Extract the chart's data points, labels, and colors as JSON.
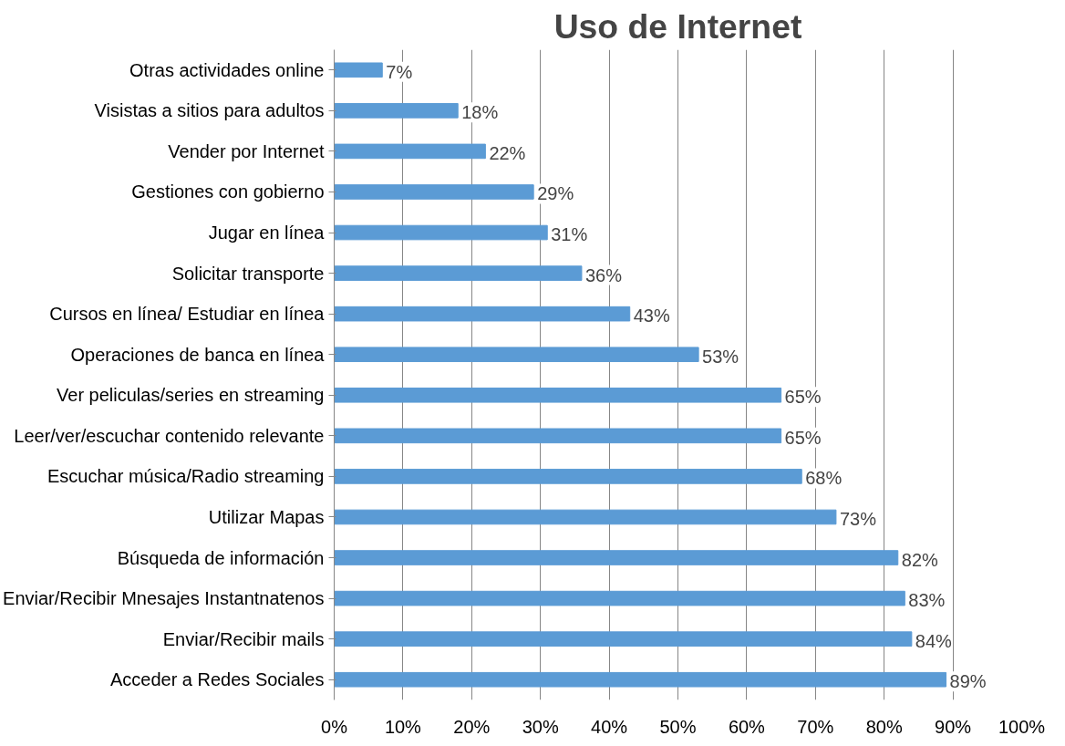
{
  "chart_data": {
    "type": "bar",
    "orientation": "horizontal",
    "title": "Uso de Internet",
    "categories": [
      "Otras actividades online",
      "Visistas a sitios para adultos",
      "Vender por Internet",
      "Gestiones con gobierno",
      "Jugar en línea",
      "Solicitar transporte",
      "Cursos en línea/ Estudiar en línea",
      "Operaciones de banca en línea",
      "Ver peliculas/series en streaming",
      "Leer/ver/escuchar contenido relevante",
      "Escuchar música/Radio streaming",
      "Utilizar Mapas",
      "Búsqueda de información",
      "Enviar/Recibir Mnesajes Instantnatenos",
      "Enviar/Recibir mails",
      "Acceder a Redes Sociales"
    ],
    "values": [
      7,
      18,
      22,
      29,
      31,
      36,
      43,
      53,
      65,
      65,
      68,
      73,
      82,
      83,
      84,
      89
    ],
    "value_labels": [
      "7%",
      "18%",
      "22%",
      "29%",
      "31%",
      "36%",
      "43%",
      "53%",
      "65%",
      "65%",
      "68%",
      "73%",
      "82%",
      "83%",
      "84%",
      "89%"
    ],
    "color": "#5b9bd5",
    "xlim": [
      0,
      100
    ],
    "xticks": [
      {
        "value": 0,
        "label": "0%"
      },
      {
        "value": 10,
        "label": "10%"
      },
      {
        "value": 20,
        "label": "20%"
      },
      {
        "value": 30,
        "label": "30%"
      },
      {
        "value": 40,
        "label": "40%"
      },
      {
        "value": 50,
        "label": "50%"
      },
      {
        "value": 60,
        "label": "60%"
      },
      {
        "value": 70,
        "label": "70%"
      },
      {
        "value": 80,
        "label": "80%"
      },
      {
        "value": 90,
        "label": "90%"
      },
      {
        "value": 100,
        "label": "100%"
      }
    ],
    "grid": "x"
  }
}
